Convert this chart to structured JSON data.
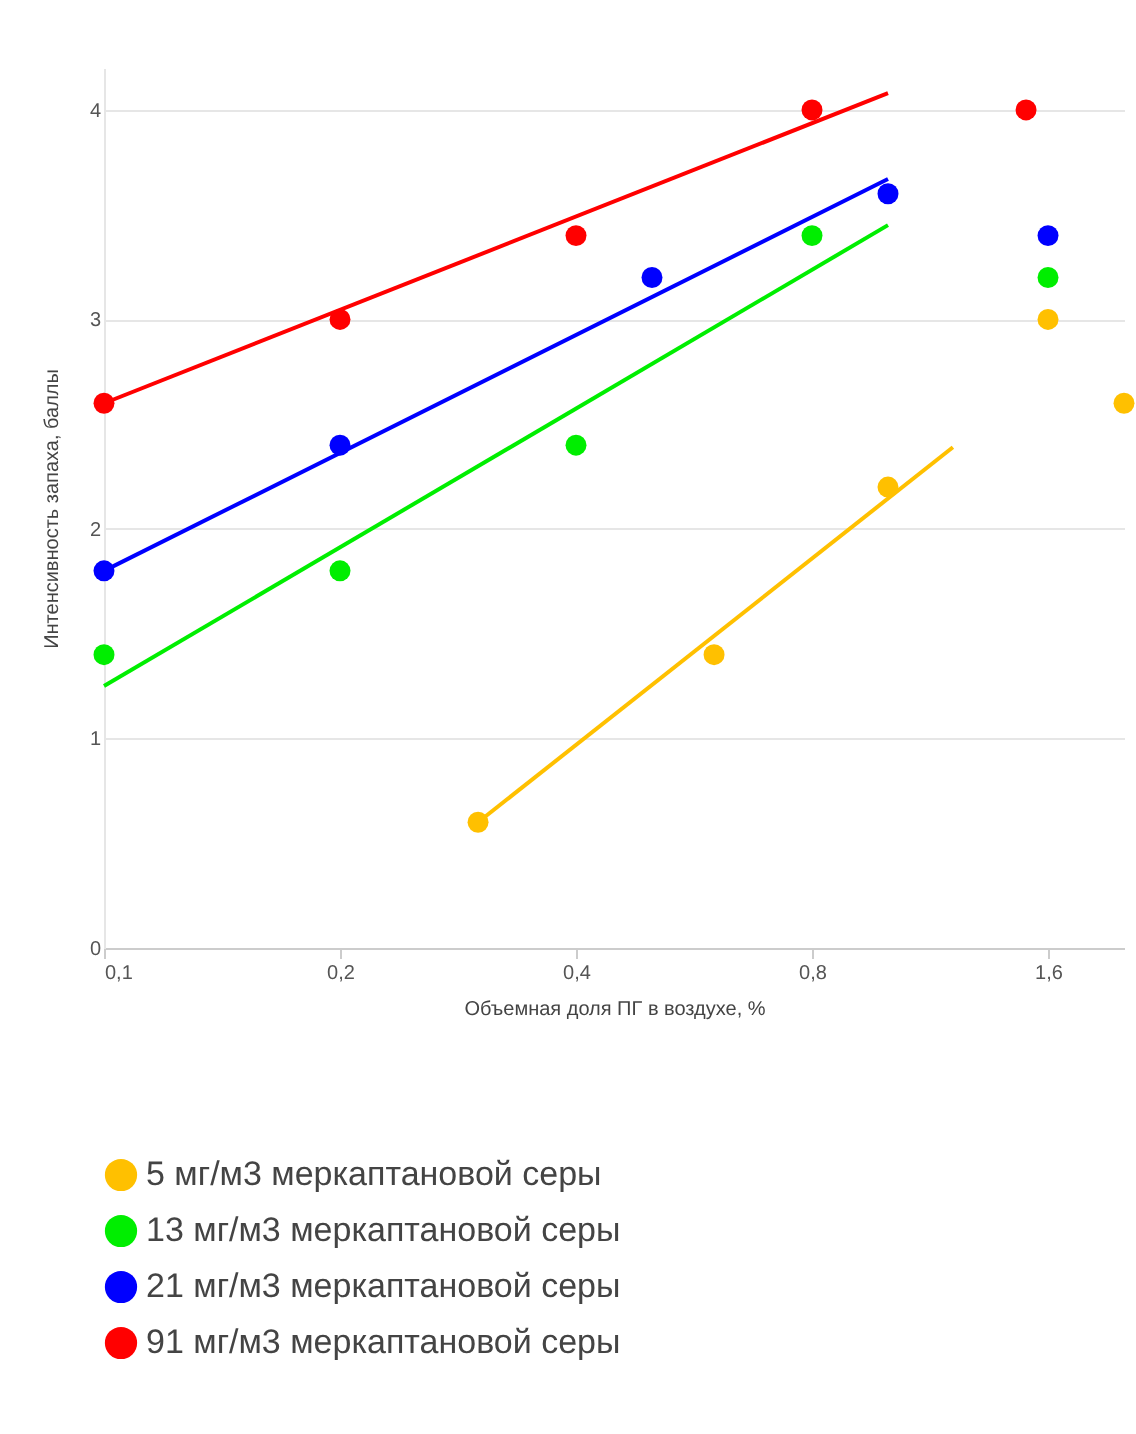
{
  "chart_data": {
    "type": "scatter",
    "xlabel": "Объемная доля ПГ в воздухе, %",
    "ylabel": "Интенсивность запаха, баллы",
    "log": "x",
    "xlim": [
      0.1,
      2.0
    ],
    "xticks": [
      {
        "value": 0.1,
        "label": "0,1"
      },
      {
        "value": 0.2,
        "label": "0,2"
      },
      {
        "value": 0.4,
        "label": "0,4"
      },
      {
        "value": 0.8,
        "label": "0,8"
      },
      {
        "value": 1.6,
        "label": "1,6"
      }
    ],
    "ylim": [
      0,
      4.2
    ],
    "yticks": [
      0,
      1,
      2,
      3,
      4
    ],
    "grid": "y",
    "legend": "bottom",
    "line_style": "solid",
    "series": [
      {
        "name": "5 мг/м3 меркаптановой серы",
        "marker": "circle",
        "color": "#ffc000",
        "x": [
          0.3,
          0.6,
          1.0,
          1.6,
          2.0
        ],
        "values": [
          0.6,
          1.4,
          2.2,
          3.0,
          2.6
        ]
      },
      {
        "name": "13 мг/м3 меркаптановой серы",
        "marker": "circle",
        "color": "#00ee00",
        "x": [
          0.1,
          0.2,
          0.4,
          0.8,
          1.6
        ],
        "values": [
          1.4,
          1.8,
          2.4,
          3.4,
          3.2
        ]
      },
      {
        "name": "21 мг/м3 меркаптановой серы",
        "marker": "circle",
        "color": "#0000ff",
        "x": [
          0.1,
          0.2,
          0.5,
          1.0,
          1.6
        ],
        "values": [
          1.8,
          2.4,
          3.2,
          3.6,
          3.4
        ]
      },
      {
        "name": "91 мг/м3 меркаптановой серы",
        "marker": "circle",
        "color": "#ff0000",
        "x": [
          0.1,
          0.2,
          0.4,
          0.8,
          1.5
        ],
        "values": [
          2.6,
          3.0,
          3.4,
          4.0,
          4.0
        ]
      },
      {
        "type": "line",
        "marker": "none",
        "color": "#ffc000",
        "x": [
          0.3,
          1.21
        ],
        "values": [
          0.6,
          2.39
        ]
      },
      {
        "type": "line",
        "marker": "none",
        "color": "#00ee00",
        "x": [
          0.1,
          1.0
        ],
        "values": [
          1.25,
          3.45
        ]
      },
      {
        "type": "line",
        "marker": "none",
        "color": "#0000ff",
        "x": [
          0.1,
          1.0
        ],
        "values": [
          1.8,
          3.67
        ]
      },
      {
        "type": "line",
        "marker": "none",
        "color": "#ff0000",
        "x": [
          0.1,
          1.0
        ],
        "values": [
          2.6,
          4.08
        ]
      }
    ]
  }
}
